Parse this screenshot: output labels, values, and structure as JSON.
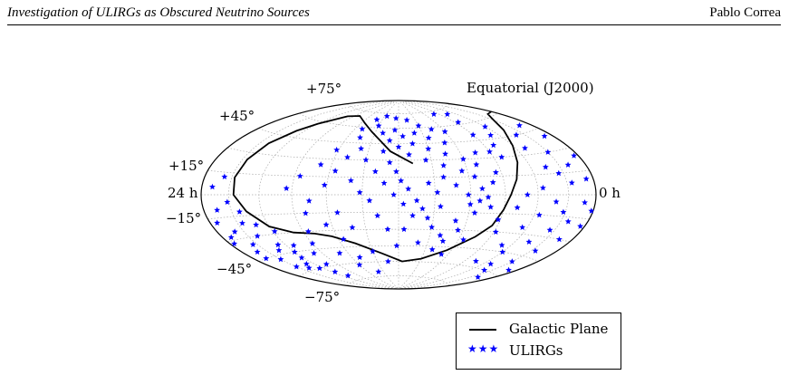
{
  "header": {
    "title": "Investigation of ULIRGs as Obscured Neutrino Sources",
    "author": "Pablo Correa"
  },
  "chart_data": {
    "type": "scatter",
    "projection": "hammer-aitoff",
    "frame_label": "Equatorial (J2000)",
    "ra_labels": {
      "left": "24 h",
      "right": "0 h"
    },
    "dec_labels": [
      "+75°",
      "+45°",
      "+15°",
      "−15°",
      "−45°",
      "−75°"
    ],
    "legend": {
      "galactic_plane": "Galactic Plane",
      "ulirgs": "ULIRGs"
    },
    "colors": {
      "ulirgs": "#0000ff",
      "galactic_plane": "#000000",
      "grid": "#aaaaaa"
    },
    "galactic_plane_ra_dec": [
      [
        192.86,
        27.13
      ],
      [
        172.0,
        38.0
      ],
      [
        145.0,
        56.0
      ],
      [
        125.0,
        64.0
      ],
      [
        100.0,
        70.0
      ],
      [
        80.0,
        68.0
      ],
      [
        60.0,
        58.0
      ],
      [
        50.0,
        50.0
      ],
      [
        40.0,
        38.0
      ],
      [
        35.0,
        25.0
      ],
      [
        33.0,
        12.0
      ],
      [
        35.0,
        0.0
      ],
      [
        45.0,
        -12.0
      ],
      [
        60.0,
        -24.0
      ],
      [
        80.0,
        -30.0
      ],
      [
        100.0,
        -32.0
      ],
      [
        115.0,
        -35.0
      ],
      [
        135.0,
        -42.0
      ],
      [
        160.0,
        -52.0
      ],
      [
        185.0,
        -60.0
      ],
      [
        210.0,
        -57.0
      ],
      [
        235.0,
        -48.0
      ],
      [
        255.0,
        -35.0
      ],
      [
        265.0,
        -25.0
      ],
      [
        270.0,
        -12.0
      ],
      [
        275.0,
        0.0
      ],
      [
        282.0,
        12.0
      ],
      [
        290.0,
        25.0
      ],
      [
        300.0,
        38.0
      ],
      [
        315.0,
        50.0
      ],
      [
        330.0,
        58.0
      ],
      [
        345.0,
        62.0
      ],
      [
        360.0,
        62.0
      ]
    ],
    "ulirgs_ra_dec": [
      [
        12,
        5
      ],
      [
        15,
        -10
      ],
      [
        8,
        -18
      ],
      [
        20,
        -25
      ],
      [
        25,
        -35
      ],
      [
        18,
        -40
      ],
      [
        30,
        -48
      ],
      [
        35,
        -20
      ],
      [
        40,
        -30
      ],
      [
        45,
        -42
      ],
      [
        10,
        -28
      ],
      [
        28,
        -5
      ],
      [
        22,
        12
      ],
      [
        50,
        -55
      ],
      [
        55,
        -60
      ],
      [
        60,
        -45
      ],
      [
        65,
        -65
      ],
      [
        70,
        -70
      ],
      [
        30,
        -55
      ],
      [
        38,
        -12
      ],
      [
        5,
        -32
      ],
      [
        15,
        -45
      ],
      [
        42,
        -58
      ],
      [
        48,
        -22
      ],
      [
        52,
        -38
      ],
      [
        58,
        -50
      ],
      [
        62,
        -28
      ],
      [
        68,
        -40
      ],
      [
        75,
        -58
      ],
      [
        80,
        -48
      ],
      [
        150,
        62
      ],
      [
        160,
        55
      ],
      [
        170,
        48
      ],
      [
        175,
        58
      ],
      [
        180,
        42
      ],
      [
        185,
        52
      ],
      [
        190,
        35
      ],
      [
        195,
        45
      ],
      [
        200,
        55
      ],
      [
        205,
        30
      ],
      [
        210,
        40
      ],
      [
        215,
        50
      ],
      [
        220,
        25
      ],
      [
        225,
        35
      ],
      [
        230,
        45
      ],
      [
        235,
        20
      ],
      [
        240,
        30
      ],
      [
        245,
        15
      ],
      [
        250,
        25
      ],
      [
        255,
        35
      ],
      [
        165,
        38
      ],
      [
        172,
        28
      ],
      [
        178,
        20
      ],
      [
        182,
        12
      ],
      [
        188,
        5
      ],
      [
        195,
        -5
      ],
      [
        200,
        -12
      ],
      [
        205,
        -20
      ],
      [
        210,
        -28
      ],
      [
        215,
        -10
      ],
      [
        220,
        -35
      ],
      [
        225,
        -40
      ],
      [
        230,
        -22
      ],
      [
        235,
        -30
      ],
      [
        240,
        -8
      ],
      [
        245,
        -15
      ],
      [
        250,
        5
      ],
      [
        255,
        -2
      ],
      [
        260,
        10
      ],
      [
        265,
        18
      ],
      [
        140,
        68
      ],
      [
        155,
        72
      ],
      [
        175,
        70
      ],
      [
        195,
        68
      ],
      [
        210,
        62
      ],
      [
        225,
        58
      ],
      [
        240,
        55
      ],
      [
        160,
        20
      ],
      [
        168,
        10
      ],
      [
        176,
        0
      ],
      [
        184,
        -8
      ],
      [
        192,
        -18
      ],
      [
        150,
        30
      ],
      [
        142,
        40
      ],
      [
        135,
        50
      ],
      [
        130,
        58
      ],
      [
        205,
        10
      ],
      [
        212,
        2
      ],
      [
        218,
        15
      ],
      [
        228,
        8
      ],
      [
        238,
        0
      ],
      [
        248,
        -5
      ],
      [
        258,
        -10
      ],
      [
        268,
        -20
      ],
      [
        272,
        -30
      ],
      [
        245,
        -38
      ],
      [
        232,
        -52
      ],
      [
        218,
        -48
      ],
      [
        200,
        -42
      ],
      [
        185,
        -30
      ],
      [
        300,
        -45
      ],
      [
        310,
        -55
      ],
      [
        320,
        -60
      ],
      [
        330,
        -50
      ],
      [
        340,
        -65
      ],
      [
        350,
        -55
      ],
      [
        315,
        -35
      ],
      [
        325,
        -25
      ],
      [
        335,
        -40
      ],
      [
        345,
        -30
      ],
      [
        355,
        -20
      ],
      [
        305,
        -15
      ],
      [
        318,
        -5
      ],
      [
        328,
        -12
      ],
      [
        338,
        -18
      ],
      [
        348,
        -5
      ],
      [
        358,
        -10
      ],
      [
        295,
        -25
      ],
      [
        290,
        -40
      ],
      [
        285,
        -55
      ],
      [
        330,
        30
      ],
      [
        340,
        20
      ],
      [
        350,
        40
      ],
      [
        355,
        25
      ],
      [
        345,
        50
      ],
      [
        320,
        45
      ],
      [
        310,
        35
      ],
      [
        335,
        8
      ],
      [
        325,
        15
      ],
      [
        352,
        10
      ],
      [
        305,
        5
      ],
      [
        315,
        20
      ],
      [
        300,
        55
      ],
      [
        290,
        48
      ],
      [
        280,
        40
      ],
      [
        100,
        -15
      ],
      [
        95,
        -30
      ],
      [
        110,
        -50
      ],
      [
        120,
        -62
      ],
      [
        90,
        -40
      ],
      [
        130,
        -55
      ],
      [
        140,
        -70
      ],
      [
        105,
        -5
      ],
      [
        115,
        -25
      ],
      [
        125,
        -38
      ],
      [
        85,
        5
      ],
      [
        95,
        15
      ],
      [
        118,
        8
      ],
      [
        128,
        -15
      ],
      [
        138,
        -28
      ],
      [
        270,
        50
      ],
      [
        275,
        62
      ],
      [
        285,
        70
      ],
      [
        260,
        72
      ],
      [
        110,
        25
      ],
      [
        118,
        38
      ],
      [
        125,
        20
      ],
      [
        132,
        32
      ],
      [
        140,
        12
      ],
      [
        148,
        2
      ],
      [
        156,
        -5
      ],
      [
        162,
        -18
      ],
      [
        170,
        -30
      ],
      [
        178,
        -45
      ],
      [
        165,
        -60
      ],
      [
        150,
        -50
      ],
      [
        290,
        0
      ],
      [
        282,
        -10
      ],
      [
        278,
        30
      ],
      [
        270,
        35
      ]
    ]
  }
}
